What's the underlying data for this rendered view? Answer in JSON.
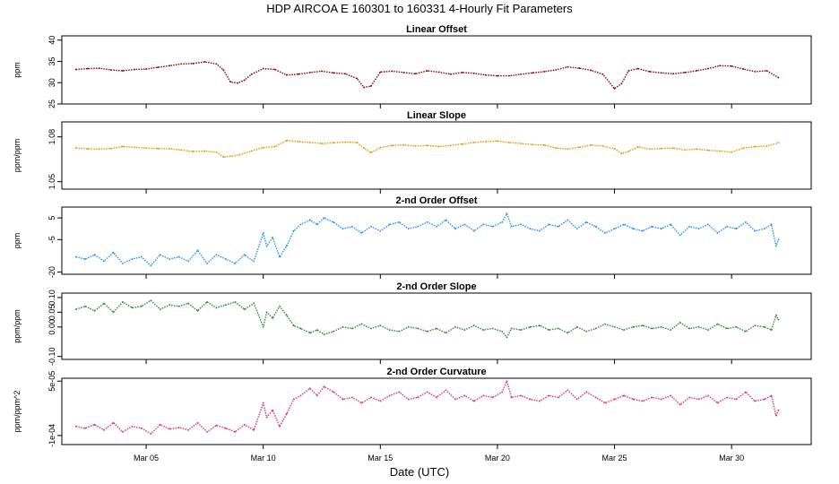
{
  "title": "HDP   AIRCOA E   160301 to 160331   4-Hourly Fit Parameters",
  "xlabel": "Date (UTC)",
  "x_ticks": [
    {
      "label": "Mar 05",
      "day": 5
    },
    {
      "label": "Mar 10",
      "day": 10
    },
    {
      "label": "Mar 15",
      "day": 15
    },
    {
      "label": "Mar 20",
      "day": 20
    },
    {
      "label": "Mar 25",
      "day": 25
    },
    {
      "label": "Mar 30",
      "day": 30
    }
  ],
  "chart_data": [
    {
      "type": "line",
      "title": "Linear Offset",
      "ylabel": "ppm",
      "color": "#8b0000",
      "ylim": [
        25,
        41
      ],
      "yticks": [
        25,
        30,
        35,
        40
      ],
      "ytick_labels": [
        "25",
        "30",
        "35",
        "40"
      ],
      "xlim": [
        1.4,
        33.4
      ],
      "x": [
        2,
        2.5,
        3,
        3.5,
        4,
        4.5,
        5,
        5.5,
        6,
        6.5,
        7,
        7.5,
        8,
        8.3,
        8.6,
        8.9,
        9.2,
        9.5,
        10,
        10.5,
        11,
        11.5,
        12,
        12.5,
        13,
        13.5,
        14,
        14.3,
        14.6,
        15,
        15.5,
        16,
        16.5,
        17,
        17.5,
        18,
        18.5,
        19,
        19.5,
        20,
        20.5,
        21,
        21.5,
        22,
        22.5,
        23,
        23.5,
        24,
        24.5,
        25,
        25.3,
        25.6,
        26,
        26.5,
        27,
        27.5,
        28,
        28.5,
        29,
        29.5,
        30,
        30.5,
        31,
        31.5,
        32
      ],
      "y": [
        33.1,
        33.3,
        33.4,
        33.0,
        32.8,
        33.1,
        33.2,
        33.6,
        34.0,
        34.4,
        34.5,
        34.9,
        34.4,
        33.0,
        30.2,
        29.9,
        30.6,
        32.0,
        33.3,
        33.1,
        31.8,
        32.0,
        32.4,
        32.7,
        32.3,
        32.1,
        31.0,
        28.9,
        29.2,
        32.5,
        32.7,
        32.4,
        32.1,
        32.8,
        32.5,
        32.0,
        32.4,
        32.2,
        31.8,
        31.6,
        31.6,
        32.0,
        32.3,
        32.6,
        33.0,
        33.7,
        33.4,
        32.9,
        32.0,
        28.6,
        29.8,
        32.8,
        33.3,
        32.6,
        32.3,
        32.1,
        32.4,
        32.8,
        33.3,
        34.0,
        33.9,
        33.2,
        32.6,
        32.8,
        31.2
      ]
    },
    {
      "type": "line",
      "title": "Linear Slope",
      "ylabel": "ppm/ppm",
      "color": "#e69500",
      "ylim": [
        1.045,
        1.09
      ],
      "yticks": [
        1.05,
        1.08
      ],
      "ytick_labels": [
        "1.05",
        "1.08"
      ],
      "xlim": [
        1.4,
        33.4
      ],
      "x": [
        2,
        2.5,
        3,
        3.5,
        4,
        4.5,
        5,
        5.5,
        6,
        6.5,
        7,
        7.5,
        8,
        8.3,
        8.6,
        9,
        9.5,
        10,
        10.5,
        11,
        11.5,
        12,
        12.5,
        13,
        13.5,
        14,
        14.3,
        14.6,
        15,
        15.5,
        16,
        16.5,
        17,
        17.5,
        18,
        18.5,
        19,
        19.5,
        20,
        20.5,
        21,
        21.5,
        22,
        22.5,
        23,
        23.5,
        24,
        24.5,
        25,
        25.3,
        25.6,
        26,
        26.5,
        27,
        27.5,
        28,
        28.5,
        29,
        29.5,
        30,
        30.5,
        31,
        31.5,
        32
      ],
      "y": [
        1.0725,
        1.072,
        1.0718,
        1.0722,
        1.0735,
        1.073,
        1.0725,
        1.0722,
        1.072,
        1.0712,
        1.0702,
        1.0705,
        1.0698,
        1.0665,
        1.067,
        1.068,
        1.0705,
        1.0728,
        1.0735,
        1.0775,
        1.0768,
        1.0762,
        1.0755,
        1.076,
        1.0765,
        1.0762,
        1.0725,
        1.0695,
        1.0728,
        1.0742,
        1.0745,
        1.0738,
        1.0742,
        1.0735,
        1.0742,
        1.0752,
        1.0762,
        1.0768,
        1.0772,
        1.0762,
        1.0755,
        1.0748,
        1.0745,
        1.0725,
        1.0718,
        1.073,
        1.0745,
        1.0738,
        1.072,
        1.0688,
        1.0702,
        1.0732,
        1.0718,
        1.0722,
        1.0725,
        1.0712,
        1.0718,
        1.071,
        1.0705,
        1.0698,
        1.0725,
        1.0735,
        1.0738,
        1.076
      ]
    },
    {
      "type": "line",
      "title": "2-nd Order Offset",
      "ylabel": "ppm",
      "color": "#1e90ff",
      "ylim": [
        -21,
        10
      ],
      "yticks": [
        -20,
        -5,
        5
      ],
      "ytick_labels": [
        "-20",
        "-5",
        "5"
      ],
      "xlim": [
        1.4,
        33.4
      ],
      "x": [
        2,
        2.4,
        2.8,
        3.2,
        3.6,
        4,
        4.4,
        4.8,
        5.2,
        5.6,
        6,
        6.4,
        6.8,
        7.2,
        7.6,
        8,
        8.4,
        8.8,
        9.2,
        9.6,
        10,
        10.15,
        10.4,
        10.7,
        11,
        11.3,
        11.6,
        12,
        12.3,
        12.6,
        13,
        13.4,
        13.8,
        14.2,
        14.6,
        15,
        15.4,
        15.8,
        16.2,
        16.6,
        17,
        17.4,
        17.8,
        18.2,
        18.6,
        19,
        19.4,
        19.8,
        20.2,
        20.4,
        20.6,
        21,
        21.4,
        21.8,
        22.2,
        22.6,
        23,
        23.4,
        23.8,
        24.2,
        24.6,
        25,
        25.4,
        25.8,
        26.2,
        26.6,
        27,
        27.4,
        27.8,
        28.2,
        28.6,
        29,
        29.4,
        29.8,
        30.2,
        30.6,
        31,
        31.4,
        31.7,
        31.9,
        32
      ],
      "y": [
        -13,
        -14,
        -12,
        -15,
        -11,
        -16,
        -14,
        -13,
        -17,
        -12,
        -14,
        -13,
        -15,
        -10,
        -16,
        -12,
        -14,
        -16,
        -12,
        -15,
        -2,
        -8,
        -4,
        -13,
        -8,
        -1,
        2,
        4,
        2,
        5,
        3,
        0,
        1,
        -2,
        1,
        -1,
        2,
        3,
        0,
        1,
        3,
        1,
        4,
        0,
        2,
        -1,
        2,
        1,
        3,
        7,
        1,
        2,
        0,
        -1,
        2,
        1,
        4,
        0,
        3,
        1,
        -2,
        0,
        2,
        0,
        -1,
        1,
        0,
        2,
        -3,
        1,
        0,
        2,
        -2,
        1,
        0,
        3,
        -1,
        0,
        2,
        -8,
        -5
      ]
    },
    {
      "type": "line",
      "title": "2-nd Order Slope",
      "ylabel": "ppm/ppm",
      "color": "#2e8b2e",
      "ylim": [
        -0.11,
        0.115
      ],
      "yticks": [
        -0.1,
        0.0,
        0.05,
        0.1
      ],
      "ytick_labels": [
        "-0.10",
        "0.00",
        "0.05",
        "0.10"
      ],
      "xlim": [
        1.4,
        33.4
      ],
      "x": [
        2,
        2.4,
        2.8,
        3.2,
        3.6,
        4,
        4.4,
        4.8,
        5.2,
        5.6,
        6,
        6.4,
        6.8,
        7.2,
        7.6,
        8,
        8.4,
        8.8,
        9.2,
        9.6,
        10,
        10.15,
        10.4,
        10.7,
        11,
        11.3,
        11.6,
        12,
        12.3,
        12.6,
        13,
        13.4,
        13.8,
        14.2,
        14.6,
        15,
        15.4,
        15.8,
        16.2,
        16.6,
        17,
        17.4,
        17.8,
        18.2,
        18.6,
        19,
        19.4,
        19.8,
        20.2,
        20.4,
        20.6,
        21,
        21.4,
        21.8,
        22.2,
        22.6,
        23,
        23.4,
        23.8,
        24.2,
        24.6,
        25,
        25.4,
        25.8,
        26.2,
        26.6,
        27,
        27.4,
        27.8,
        28.2,
        28.6,
        29,
        29.4,
        29.8,
        30.2,
        30.6,
        31,
        31.4,
        31.7,
        31.9,
        32
      ],
      "y": [
        0.06,
        0.07,
        0.055,
        0.08,
        0.05,
        0.085,
        0.065,
        0.07,
        0.09,
        0.06,
        0.075,
        0.07,
        0.08,
        0.055,
        0.085,
        0.065,
        0.075,
        0.085,
        0.06,
        0.08,
        0.0,
        0.05,
        0.03,
        0.07,
        0.04,
        0.005,
        -0.005,
        -0.02,
        -0.01,
        -0.025,
        -0.015,
        0.0,
        -0.005,
        0.01,
        -0.005,
        0.005,
        -0.01,
        -0.015,
        0.0,
        -0.005,
        -0.015,
        -0.005,
        -0.02,
        0.0,
        -0.01,
        0.005,
        -0.01,
        -0.005,
        -0.015,
        -0.035,
        -0.005,
        -0.01,
        0.0,
        0.005,
        -0.01,
        -0.005,
        -0.02,
        0.0,
        -0.015,
        -0.005,
        0.01,
        0.0,
        -0.01,
        0.0,
        0.005,
        -0.005,
        0.0,
        -0.01,
        0.015,
        -0.005,
        0.0,
        -0.01,
        0.01,
        -0.005,
        0.0,
        -0.015,
        0.005,
        0.0,
        -0.01,
        0.04,
        0.025
      ]
    },
    {
      "type": "line",
      "title": "2-nd Order Curvature",
      "ylabel": "ppm/ppm^2",
      "color": "#e0306e",
      "ylim": [
        -0.000125,
        5.8e-05
      ],
      "yticks": [
        -0.0001,
        5e-05
      ],
      "ytick_labels": [
        "-1e-04",
        "5e-05"
      ],
      "xlim": [
        1.4,
        33.4
      ],
      "x": [
        2,
        2.4,
        2.8,
        3.2,
        3.6,
        4,
        4.4,
        4.8,
        5.2,
        5.6,
        6,
        6.4,
        6.8,
        7.2,
        7.6,
        8,
        8.4,
        8.8,
        9.2,
        9.6,
        10,
        10.15,
        10.4,
        10.7,
        11,
        11.3,
        11.6,
        12,
        12.3,
        12.6,
        13,
        13.4,
        13.8,
        14.2,
        14.6,
        15,
        15.4,
        15.8,
        16.2,
        16.6,
        17,
        17.4,
        17.8,
        18.2,
        18.6,
        19,
        19.4,
        19.8,
        20.2,
        20.4,
        20.6,
        21,
        21.4,
        21.8,
        22.2,
        22.6,
        23,
        23.4,
        23.8,
        24.2,
        24.6,
        25,
        25.4,
        25.8,
        26.2,
        26.6,
        27,
        27.4,
        27.8,
        28.2,
        28.6,
        29,
        29.4,
        29.8,
        30.2,
        30.6,
        31,
        31.4,
        31.7,
        31.9,
        32
      ],
      "y": [
        -7.5e-05,
        -8e-05,
        -7e-05,
        -8.5e-05,
        -6.5e-05,
        -9e-05,
        -7.5e-05,
        -8e-05,
        -9.5e-05,
        -7e-05,
        -8.2e-05,
        -7.8e-05,
        -8.5e-05,
        -6.5e-05,
        -9e-05,
        -7.2e-05,
        -8e-05,
        -9e-05,
        -7e-05,
        -8.5e-05,
        -1e-05,
        -5e-05,
        -3e-05,
        -7.5e-05,
        -4e-05,
        0.0,
        1e-05,
        3e-05,
        1e-05,
        3.5e-05,
        2e-05,
        0.0,
        5e-06,
        -1e-05,
        5e-06,
        -5e-06,
        1e-05,
        2e-05,
        0.0,
        5e-06,
        2e-05,
        5e-06,
        2.5e-05,
        0.0,
        1e-05,
        -5e-06,
        1e-05,
        5e-06,
        2e-05,
        5e-05,
        5e-06,
        1e-05,
        0.0,
        -5e-06,
        1e-05,
        5e-06,
        2.5e-05,
        0.0,
        2e-05,
        5e-06,
        -1e-05,
        0.0,
        1e-05,
        0.0,
        -5e-06,
        5e-06,
        0.0,
        1e-05,
        -1.5e-05,
        5e-06,
        0.0,
        1e-05,
        -1e-05,
        5e-06,
        0.0,
        2e-05,
        -5e-06,
        0.0,
        1e-05,
        -4.5e-05,
        -3e-05
      ]
    }
  ]
}
